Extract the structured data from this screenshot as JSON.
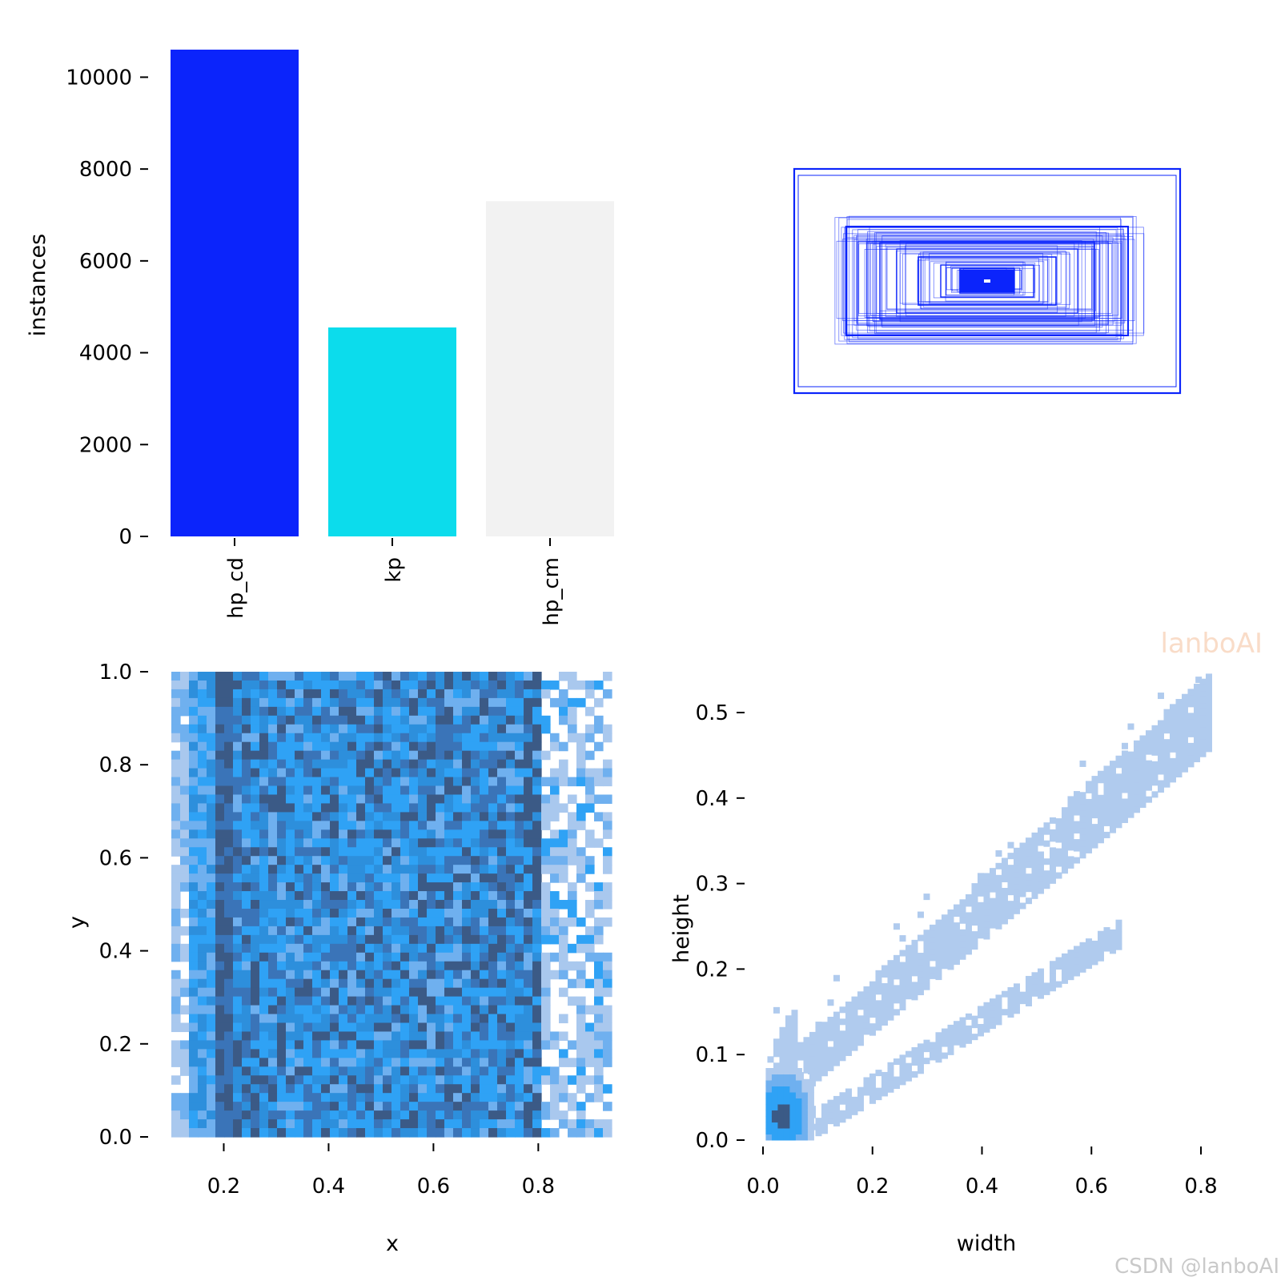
{
  "chart_data": [
    {
      "type": "bar",
      "categories": [
        "hp_cd",
        "kp",
        "hp_cm"
      ],
      "values": [
        10600,
        4550,
        7300
      ],
      "colors": [
        "#0b24fb",
        "#0cdcec",
        "#f2f2f2"
      ],
      "ylabel": "instances",
      "ylim": [
        0,
        10600
      ],
      "yticks": [
        "0",
        "2000",
        "4000",
        "6000",
        "8000",
        "10000"
      ],
      "grid": false
    },
    {
      "type": "rectangles",
      "description_color": "#0b24fb",
      "grid": false
    },
    {
      "type": "heatmap",
      "xlabel": "x",
      "ylabel": "y",
      "xlim": [
        0.1,
        0.94
      ],
      "ylim": [
        0.0,
        1.0
      ],
      "xticks": [
        "0.2",
        "0.4",
        "0.6",
        "0.8"
      ],
      "yticks": [
        "0.0",
        "0.2",
        "0.4",
        "0.6",
        "0.8",
        "1.0"
      ],
      "colors": [
        "#a9c8ee",
        "#6fb0ef",
        "#2fa2f5",
        "#2d8fdc",
        "#3a74b8",
        "#3b5a86"
      ],
      "grid": false
    },
    {
      "type": "heatmap",
      "xlabel": "width",
      "ylabel": "height",
      "xlim": [
        0.0,
        0.8
      ],
      "ylim": [
        0.0,
        0.55
      ],
      "xticks": [
        "0.0",
        "0.2",
        "0.4",
        "0.6",
        "0.8"
      ],
      "yticks": [
        "0.0",
        "0.1",
        "0.2",
        "0.3",
        "0.4",
        "0.5"
      ],
      "colors": [
        "#b0cbee",
        "#6fb0ef",
        "#2fa2f5",
        "#3b5a86"
      ],
      "grid": false
    }
  ],
  "watermarks": {
    "top": "lanboAI",
    "bottom": "CSDN @lanboAI"
  }
}
